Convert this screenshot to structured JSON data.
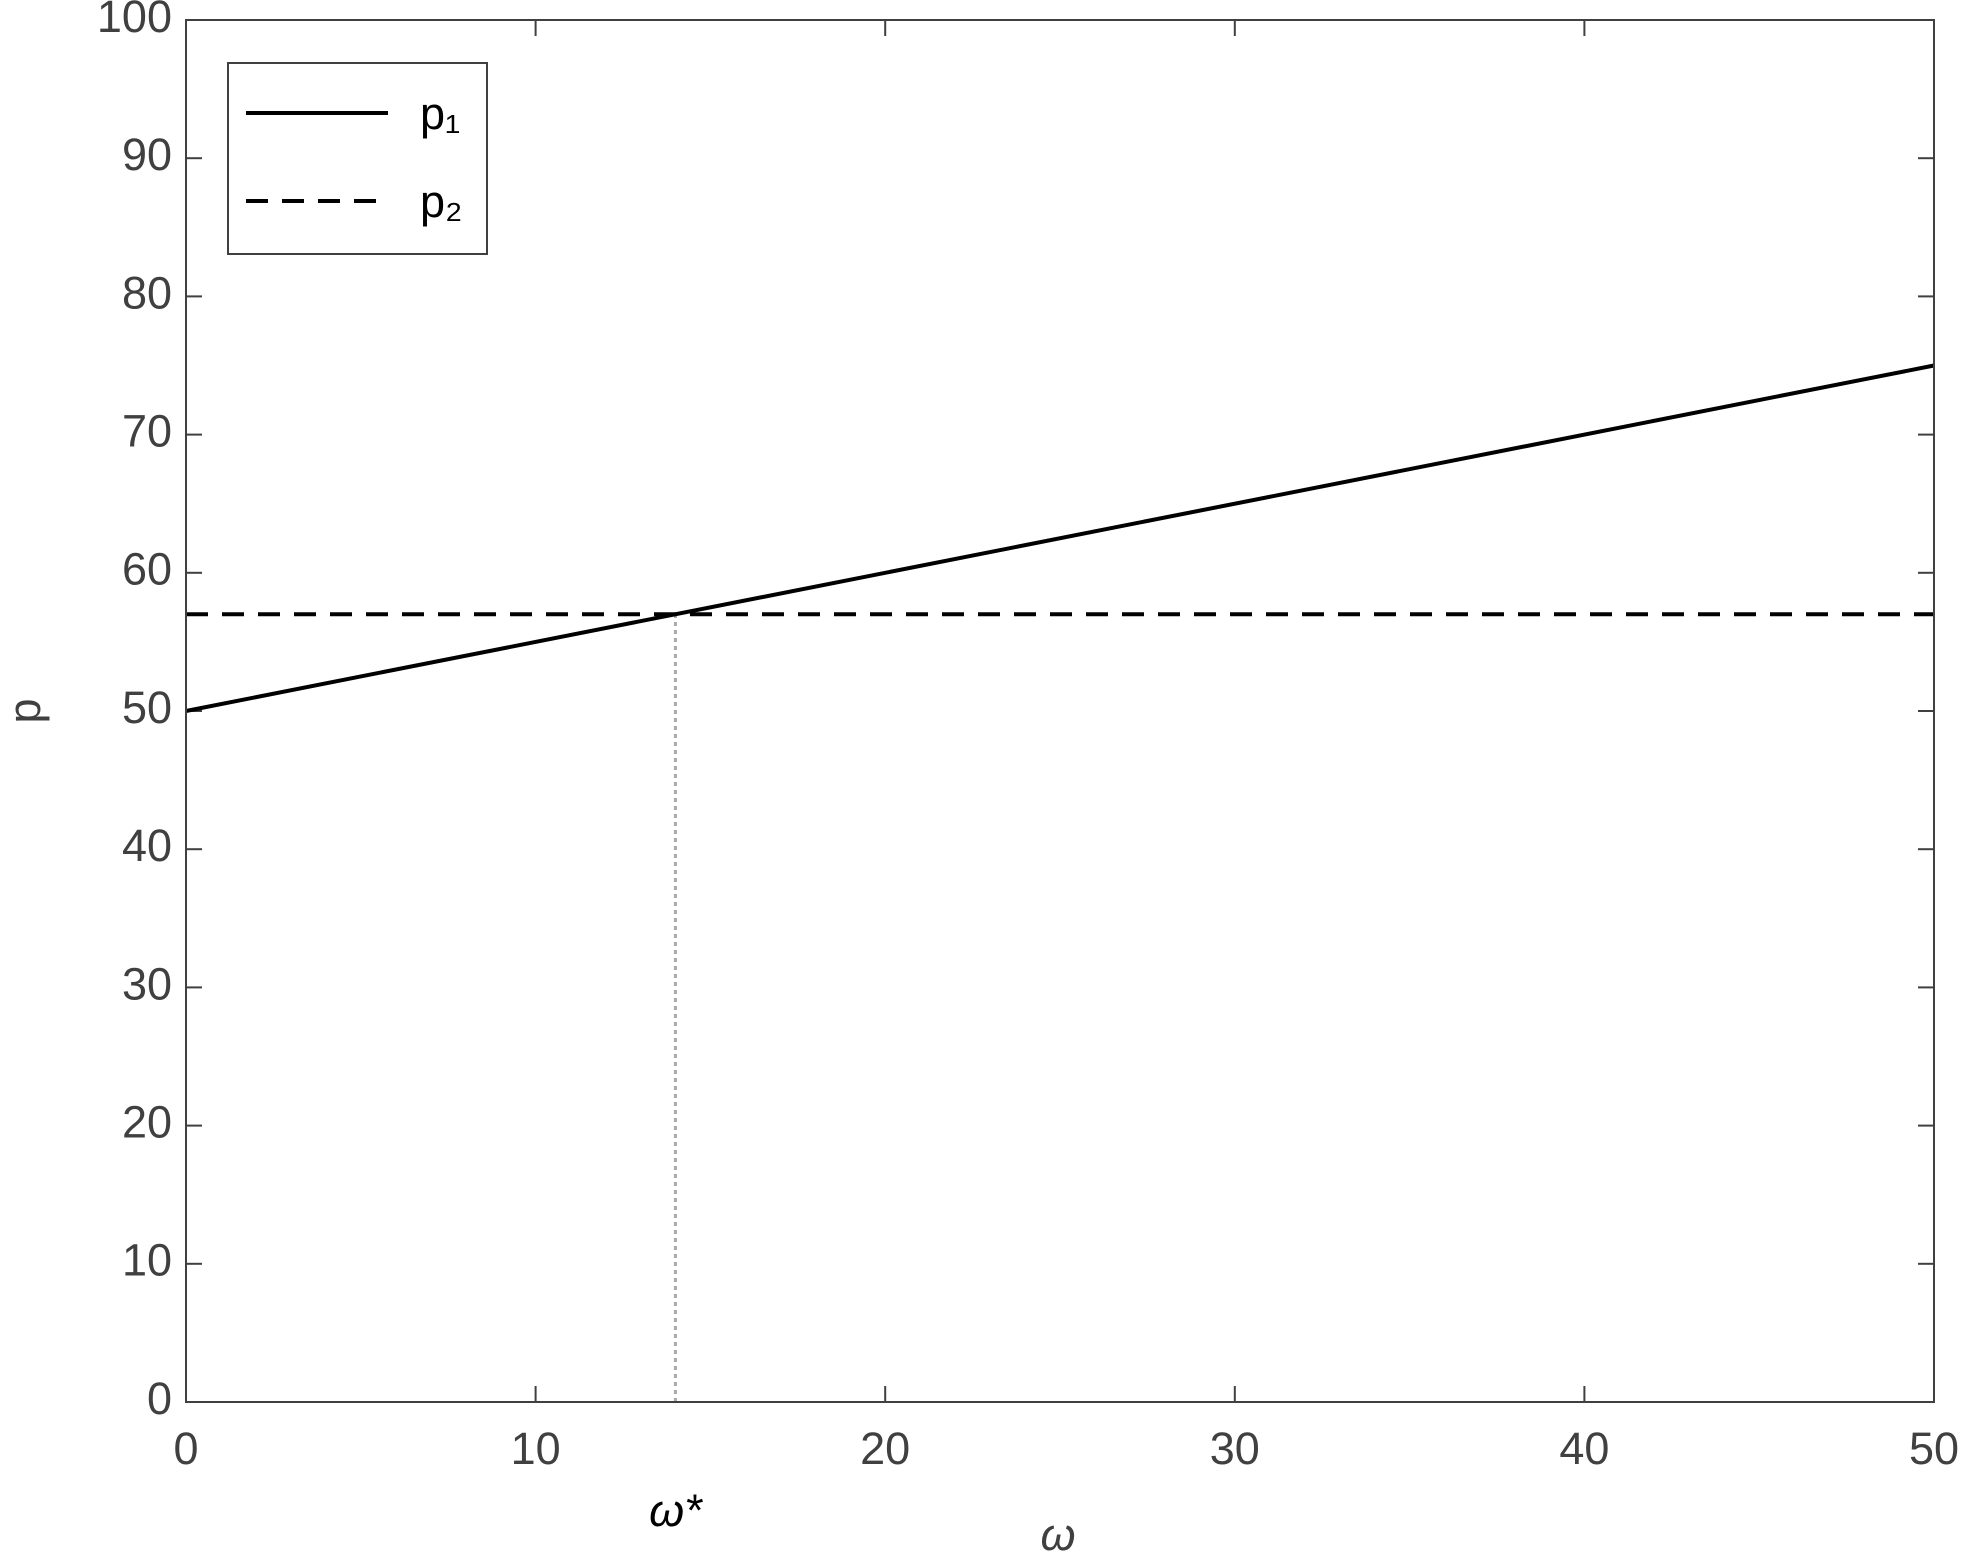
{
  "chart_data": {
    "type": "line",
    "x_label": "ω",
    "y_label": "p",
    "series": [
      {
        "name": "p₁",
        "color": "#000000",
        "dash": "solid",
        "x": [
          0,
          50
        ],
        "values": [
          50,
          75
        ]
      },
      {
        "name": "p₂",
        "color": "#000000",
        "dash": "dashed",
        "x": [
          0,
          50
        ],
        "values": [
          57,
          57
        ]
      }
    ],
    "annotations": [
      {
        "text": "ω*",
        "x": 14,
        "ymax": 57,
        "color": "#aaaaaa"
      }
    ],
    "xlim": [
      0,
      50
    ],
    "xticks": [
      0,
      10,
      20,
      30,
      40,
      50
    ],
    "ylim": [
      0,
      100
    ],
    "yticks": [
      0,
      10,
      20,
      30,
      40,
      50,
      60,
      70,
      80,
      90,
      100
    ],
    "grid": false,
    "legend": "upper left"
  }
}
